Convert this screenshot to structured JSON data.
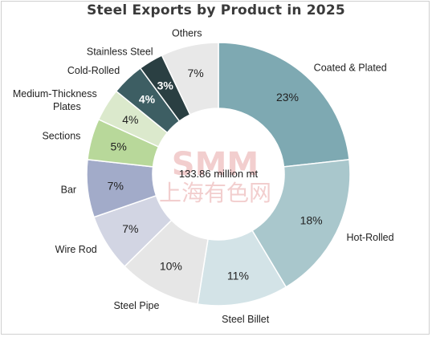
{
  "chart_data": {
    "type": "pie",
    "title": "Steel Exports by Product in 2025",
    "center_label": "133.86 million mt",
    "slices": [
      {
        "name": "Coated & Plated",
        "value": 23,
        "label": "23%",
        "color": "#7ea9b2"
      },
      {
        "name": "Hot-Rolled",
        "value": 18,
        "label": "18%",
        "color": "#a9c7cc"
      },
      {
        "name": "Steel Billet",
        "value": 11,
        "label": "11%",
        "color": "#d3e3e7"
      },
      {
        "name": "Steel Pipe",
        "value": 10,
        "label": "10%",
        "color": "#e6e6e6"
      },
      {
        "name": "Wire Rod",
        "value": 7,
        "label": "7%",
        "color": "#d2d5e3"
      },
      {
        "name": "Bar",
        "value": 7,
        "label": "7%",
        "color": "#a2abc9"
      },
      {
        "name": "Sections",
        "value": 5,
        "label": "5%",
        "color": "#b8d89a"
      },
      {
        "name": "Medium-Thickness Plates",
        "value": 4,
        "label": "4%",
        "color": "#dbe9cc"
      },
      {
        "name": "Cold-Rolled",
        "value": 4,
        "label": "4%",
        "color": "#3d5e63"
      },
      {
        "name": "Stainless Steel",
        "value": 3,
        "label": "3%",
        "color": "#2a3f42"
      },
      {
        "name": "Others",
        "value": 7,
        "label": "7%",
        "color": "#e8e8e8"
      }
    ],
    "legend": "none"
  },
  "watermark": {
    "logo_text": "SMM",
    "logo_subtext": "上海有色网"
  }
}
